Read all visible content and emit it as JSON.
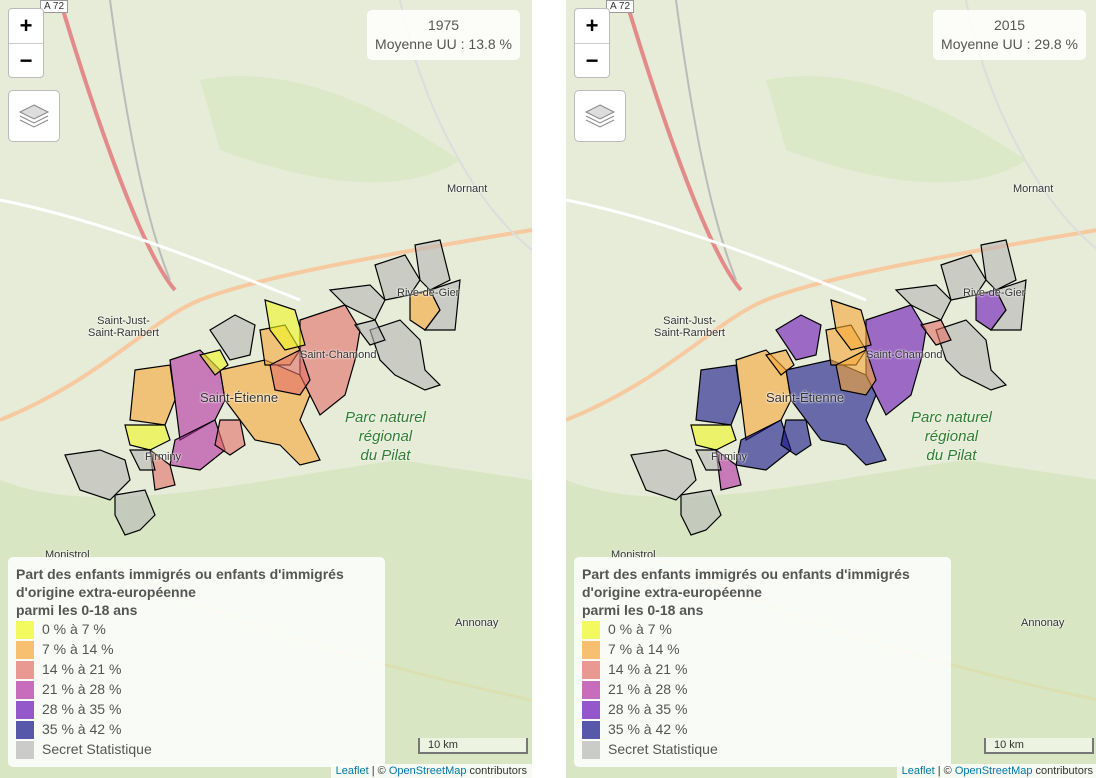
{
  "maps": [
    {
      "year": "1975",
      "average": "Moyenne UU : 13.8 %"
    },
    {
      "year": "2015",
      "average": "Moyenne UU : 29.8 %"
    }
  ],
  "zoom_in": "+",
  "zoom_out": "−",
  "legend": {
    "title": [
      "Part des enfants immigrés ou enfants d'immigrés",
      "d'origine extra-européenne",
      "parmi les 0-18 ans"
    ],
    "items": [
      {
        "label": "0 % à 7 %",
        "color": "#f0f921"
      },
      {
        "label": "7 % à 14 %",
        "color": "#f6a637"
      },
      {
        "label": "14 % à 21 %",
        "color": "#e26e68"
      },
      {
        "label": "21 % à 28 %",
        "color": "#b42fa4"
      },
      {
        "label": "28 % à 35 %",
        "color": "#6a12b8"
      },
      {
        "label": "35 % à 42 %",
        "color": "#12128a"
      },
      {
        "label": "Secret Statistique",
        "color": "#b8b8b8"
      }
    ]
  },
  "places": {
    "road": "A 72",
    "mornant": "Mornant",
    "sjsr": [
      "Saint-Just-",
      "Saint-Rambert"
    ],
    "rive": "Rive-de-Gier",
    "chamond": "Saint-Chamond",
    "etienne": "Saint-Étienne",
    "firminy": "Firminy",
    "park": [
      "Parc naturel",
      "régional",
      "du Pilat"
    ],
    "monistrol": "Monistrol",
    "annonay": "Annonay"
  },
  "scale": "10 km",
  "attribution": {
    "leaflet": "Leaflet",
    "sep": " | © ",
    "osm": "OpenStreetMap",
    "rest": " contributors"
  }
}
